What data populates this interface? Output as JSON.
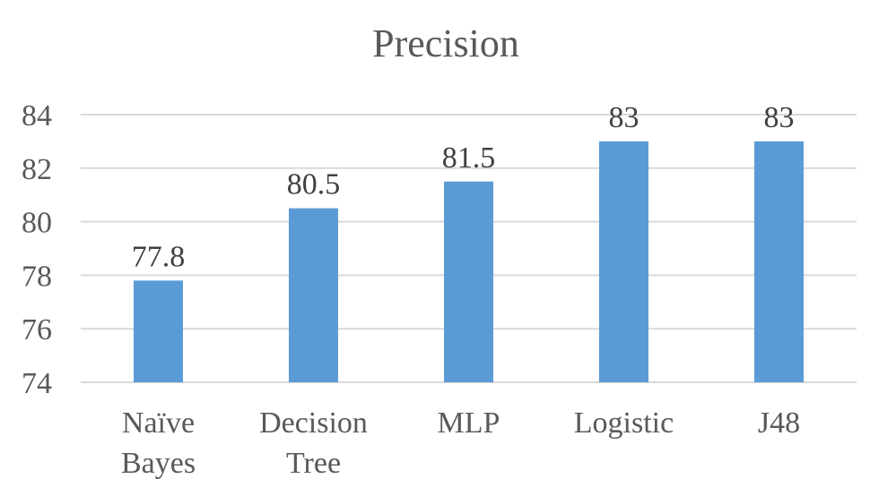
{
  "chart_data": {
    "type": "bar",
    "title": "Precision",
    "categories": [
      [
        "Naïve",
        "Bayes"
      ],
      [
        "Decision",
        "Tree"
      ],
      [
        "MLP"
      ],
      [
        "Logistic"
      ],
      [
        "J48"
      ]
    ],
    "values": [
      77.8,
      80.5,
      81.5,
      83,
      83
    ],
    "data_labels": [
      "77.8",
      "80.5",
      "81.5",
      "83",
      "83"
    ],
    "xlabel": "",
    "ylabel": "",
    "ylim": [
      74,
      84
    ],
    "yticks": [
      "74",
      "76",
      "78",
      "80",
      "82",
      "84"
    ],
    "grid": true,
    "legend": "none",
    "colors": {
      "bar": "#5b9bd5",
      "grid": "#d9d9d9",
      "text": "#595959"
    }
  }
}
